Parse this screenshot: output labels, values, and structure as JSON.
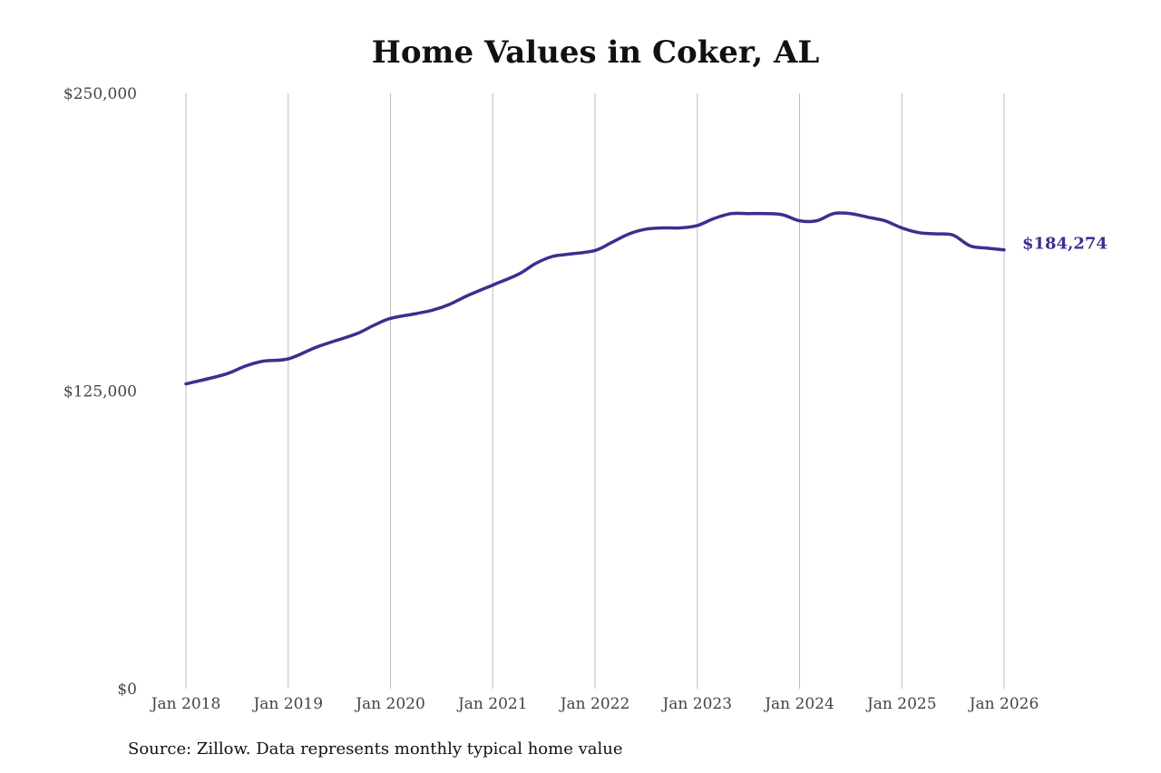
{
  "chart_data": {
    "type": "line",
    "title": "Home Values in Coker, AL",
    "source": "Source: Zillow. Data represents monthly typical home value",
    "ylim": [
      0,
      250000
    ],
    "y_ticks": [
      {
        "value": 0,
        "label": "$0"
      },
      {
        "value": 125000,
        "label": "$125,000"
      },
      {
        "value": 250000,
        "label": "$250,000"
      }
    ],
    "x_ticks": [
      {
        "value": "2018-01",
        "label": "Jan 2018"
      },
      {
        "value": "2019-01",
        "label": "Jan 2019"
      },
      {
        "value": "2020-01",
        "label": "Jan 2020"
      },
      {
        "value": "2021-01",
        "label": "Jan 2021"
      },
      {
        "value": "2022-01",
        "label": "Jan 2022"
      },
      {
        "value": "2023-01",
        "label": "Jan 2023"
      },
      {
        "value": "2024-01",
        "label": "Jan 2024"
      },
      {
        "value": "2025-01",
        "label": "Jan 2025"
      },
      {
        "value": "2026-01",
        "label": "Jan 2026"
      }
    ],
    "grid": "vertical",
    "line_color": "#3b2f8f",
    "end_label": "$184,274",
    "series": [
      {
        "x": [
          "2018-01",
          "2018-04",
          "2018-06",
          "2018-08",
          "2018-10",
          "2019-01",
          "2019-04",
          "2019-06",
          "2019-09",
          "2019-11",
          "2020-01",
          "2020-04",
          "2020-06",
          "2020-08",
          "2020-10",
          "2021-01",
          "2021-04",
          "2021-06",
          "2021-08",
          "2021-10",
          "2022-01",
          "2022-03",
          "2022-05",
          "2022-07",
          "2022-09",
          "2022-11",
          "2023-01",
          "2023-03",
          "2023-05",
          "2023-07",
          "2023-09",
          "2023-11",
          "2024-01",
          "2024-03",
          "2024-05",
          "2024-07",
          "2024-09",
          "2024-11",
          "2025-01",
          "2025-03",
          "2025-05",
          "2025-07",
          "2025-09",
          "2025-11",
          "2026-01"
        ],
        "values": [
          128000,
          130500,
          132500,
          135500,
          137500,
          138500,
          143000,
          145500,
          149000,
          152500,
          155500,
          157500,
          159000,
          161500,
          165000,
          169500,
          174000,
          178500,
          181500,
          182500,
          184000,
          187500,
          191000,
          193000,
          193500,
          193500,
          194500,
          197500,
          199500,
          199500,
          199500,
          199000,
          196500,
          196500,
          199500,
          199500,
          198000,
          196500,
          193500,
          191500,
          191000,
          190500,
          186000,
          185000,
          184274
        ]
      }
    ]
  }
}
